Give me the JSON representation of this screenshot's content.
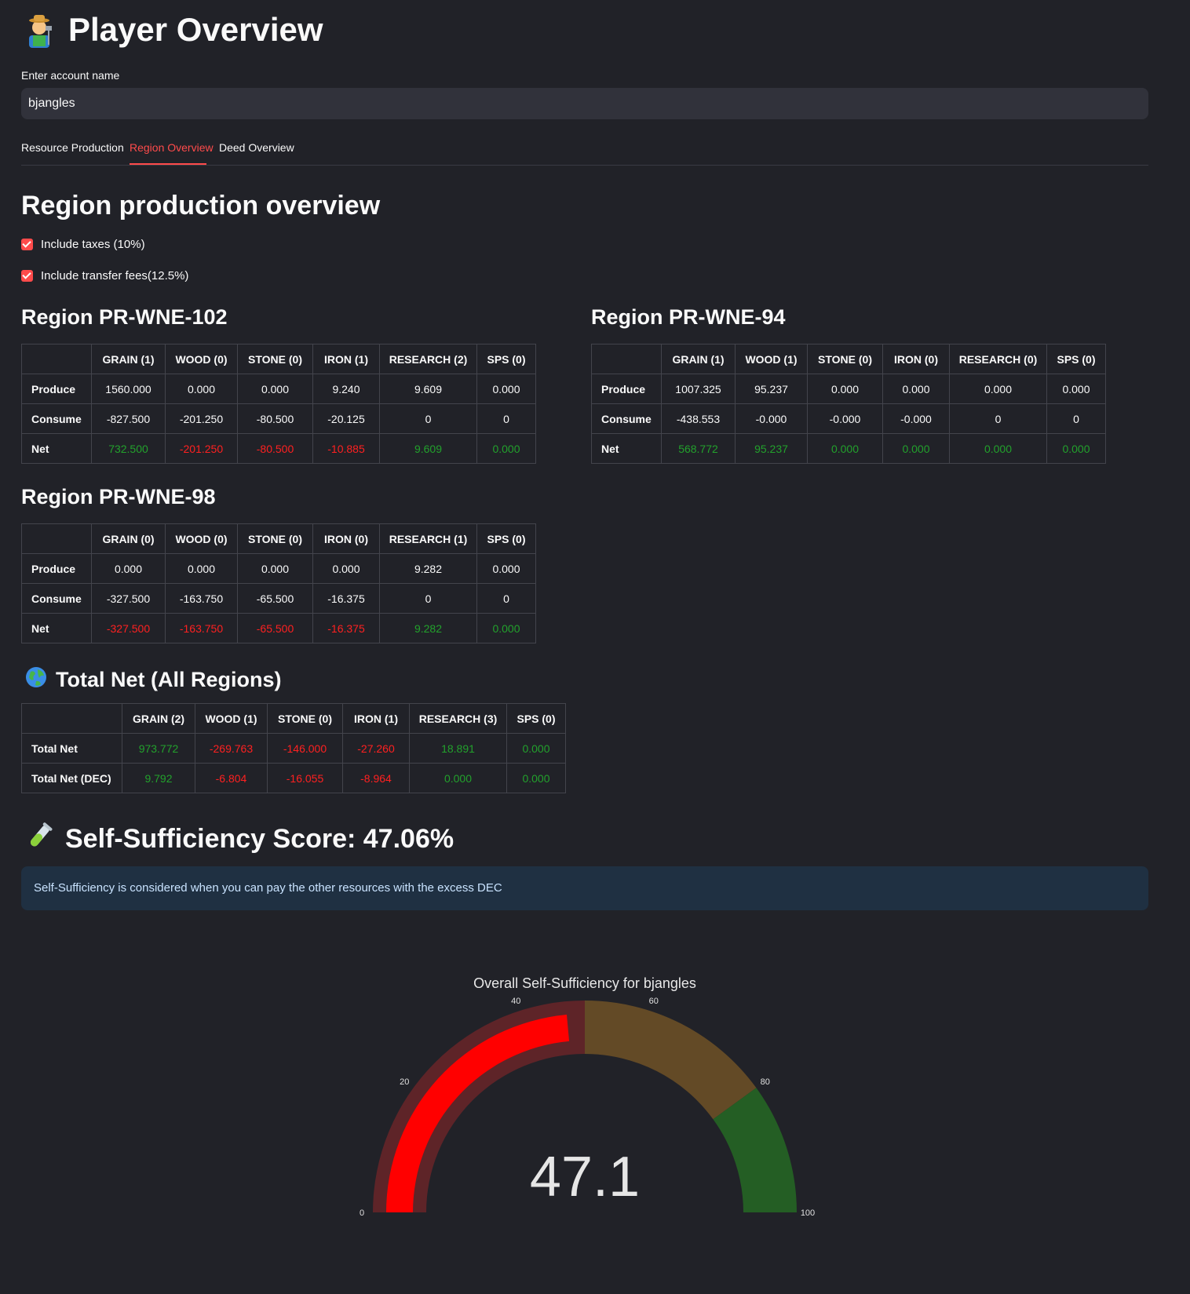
{
  "header": {
    "title": "Player Overview",
    "icon": "farmer-icon"
  },
  "account": {
    "label": "Enter account name",
    "value": "bjangles"
  },
  "tabs": [
    "Resource Production",
    "Region Overview",
    "Deed Overview"
  ],
  "active_tab": "Region Overview",
  "section_title": "Region production overview",
  "options": [
    {
      "label": "Include taxes (10%)",
      "checked": true
    },
    {
      "label": "Include transfer fees(12.5%)",
      "checked": true
    }
  ],
  "regions": [
    {
      "title": "Region PR-WNE-102",
      "columns": [
        "GRAIN (1)",
        "WOOD (0)",
        "STONE (0)",
        "IRON (1)",
        "RESEARCH (2)",
        "SPS (0)"
      ],
      "rows": [
        {
          "label": "Produce",
          "cells": [
            "1560.000",
            "0.000",
            "0.000",
            "9.240",
            "9.609",
            "0.000"
          ]
        },
        {
          "label": "Consume",
          "cells": [
            "-827.500",
            "-201.250",
            "-80.500",
            "-20.125",
            "0",
            "0"
          ]
        },
        {
          "label": "Net",
          "cells": [
            "732.500",
            "-201.250",
            "-80.500",
            "-10.885",
            "9.609",
            "0.000"
          ]
        }
      ]
    },
    {
      "title": "Region PR-WNE-94",
      "columns": [
        "GRAIN (1)",
        "WOOD (1)",
        "STONE (0)",
        "IRON (0)",
        "RESEARCH (0)",
        "SPS (0)"
      ],
      "rows": [
        {
          "label": "Produce",
          "cells": [
            "1007.325",
            "95.237",
            "0.000",
            "0.000",
            "0.000",
            "0.000"
          ]
        },
        {
          "label": "Consume",
          "cells": [
            "-438.553",
            "-0.000",
            "-0.000",
            "-0.000",
            "0",
            "0"
          ]
        },
        {
          "label": "Net",
          "cells": [
            "568.772",
            "95.237",
            "0.000",
            "0.000",
            "0.000",
            "0.000"
          ]
        }
      ]
    },
    {
      "title": "Region PR-WNE-98",
      "columns": [
        "GRAIN (0)",
        "WOOD (0)",
        "STONE (0)",
        "IRON (0)",
        "RESEARCH (1)",
        "SPS (0)"
      ],
      "rows": [
        {
          "label": "Produce",
          "cells": [
            "0.000",
            "0.000",
            "0.000",
            "0.000",
            "9.282",
            "0.000"
          ]
        },
        {
          "label": "Consume",
          "cells": [
            "-327.500",
            "-163.750",
            "-65.500",
            "-16.375",
            "0",
            "0"
          ]
        },
        {
          "label": "Net",
          "cells": [
            "-327.500",
            "-163.750",
            "-65.500",
            "-16.375",
            "9.282",
            "0.000"
          ]
        }
      ]
    }
  ],
  "total": {
    "title": "Total Net (All Regions)",
    "icon": "globe-icon",
    "columns": [
      "GRAIN (2)",
      "WOOD (1)",
      "STONE (0)",
      "IRON (1)",
      "RESEARCH (3)",
      "SPS (0)"
    ],
    "rows": [
      {
        "label": "Total Net",
        "cells": [
          "973.772",
          "-269.763",
          "-146.000",
          "-27.260",
          "18.891",
          "0.000"
        ]
      },
      {
        "label": "Total Net (DEC)",
        "cells": [
          "9.792",
          "-6.804",
          "-16.055",
          "-8.964",
          "0.000",
          "0.000"
        ]
      }
    ]
  },
  "score": {
    "title": "Self-Sufficiency Score: 47.06%",
    "icon": "test-tube-icon"
  },
  "info_text": "Self-Sufficiency is considered when you can pay the other resources with the excess DEC",
  "colors": {
    "accent": "#ff4b4b",
    "positive": "#22a12c",
    "negative": "#ff2020",
    "band_low": "#5e2428",
    "band_mid": "#634a26",
    "band_high": "#245e24",
    "bar": "#ff0000"
  },
  "chart_data": {
    "type": "gauge",
    "title": "Overall Self-Sufficiency for bjangles",
    "value": 47.1,
    "display_value": "47.1",
    "range": [
      0,
      100
    ],
    "ticks": [
      "0",
      "20",
      "40",
      "60",
      "80",
      "100"
    ],
    "tick_values": [
      0,
      20,
      40,
      60,
      80,
      100
    ],
    "bands": [
      {
        "from": 0,
        "to": 50,
        "color": "#5e2428"
      },
      {
        "from": 50,
        "to": 80,
        "color": "#634a26"
      },
      {
        "from": 80,
        "to": 100,
        "color": "#245e24"
      }
    ]
  }
}
